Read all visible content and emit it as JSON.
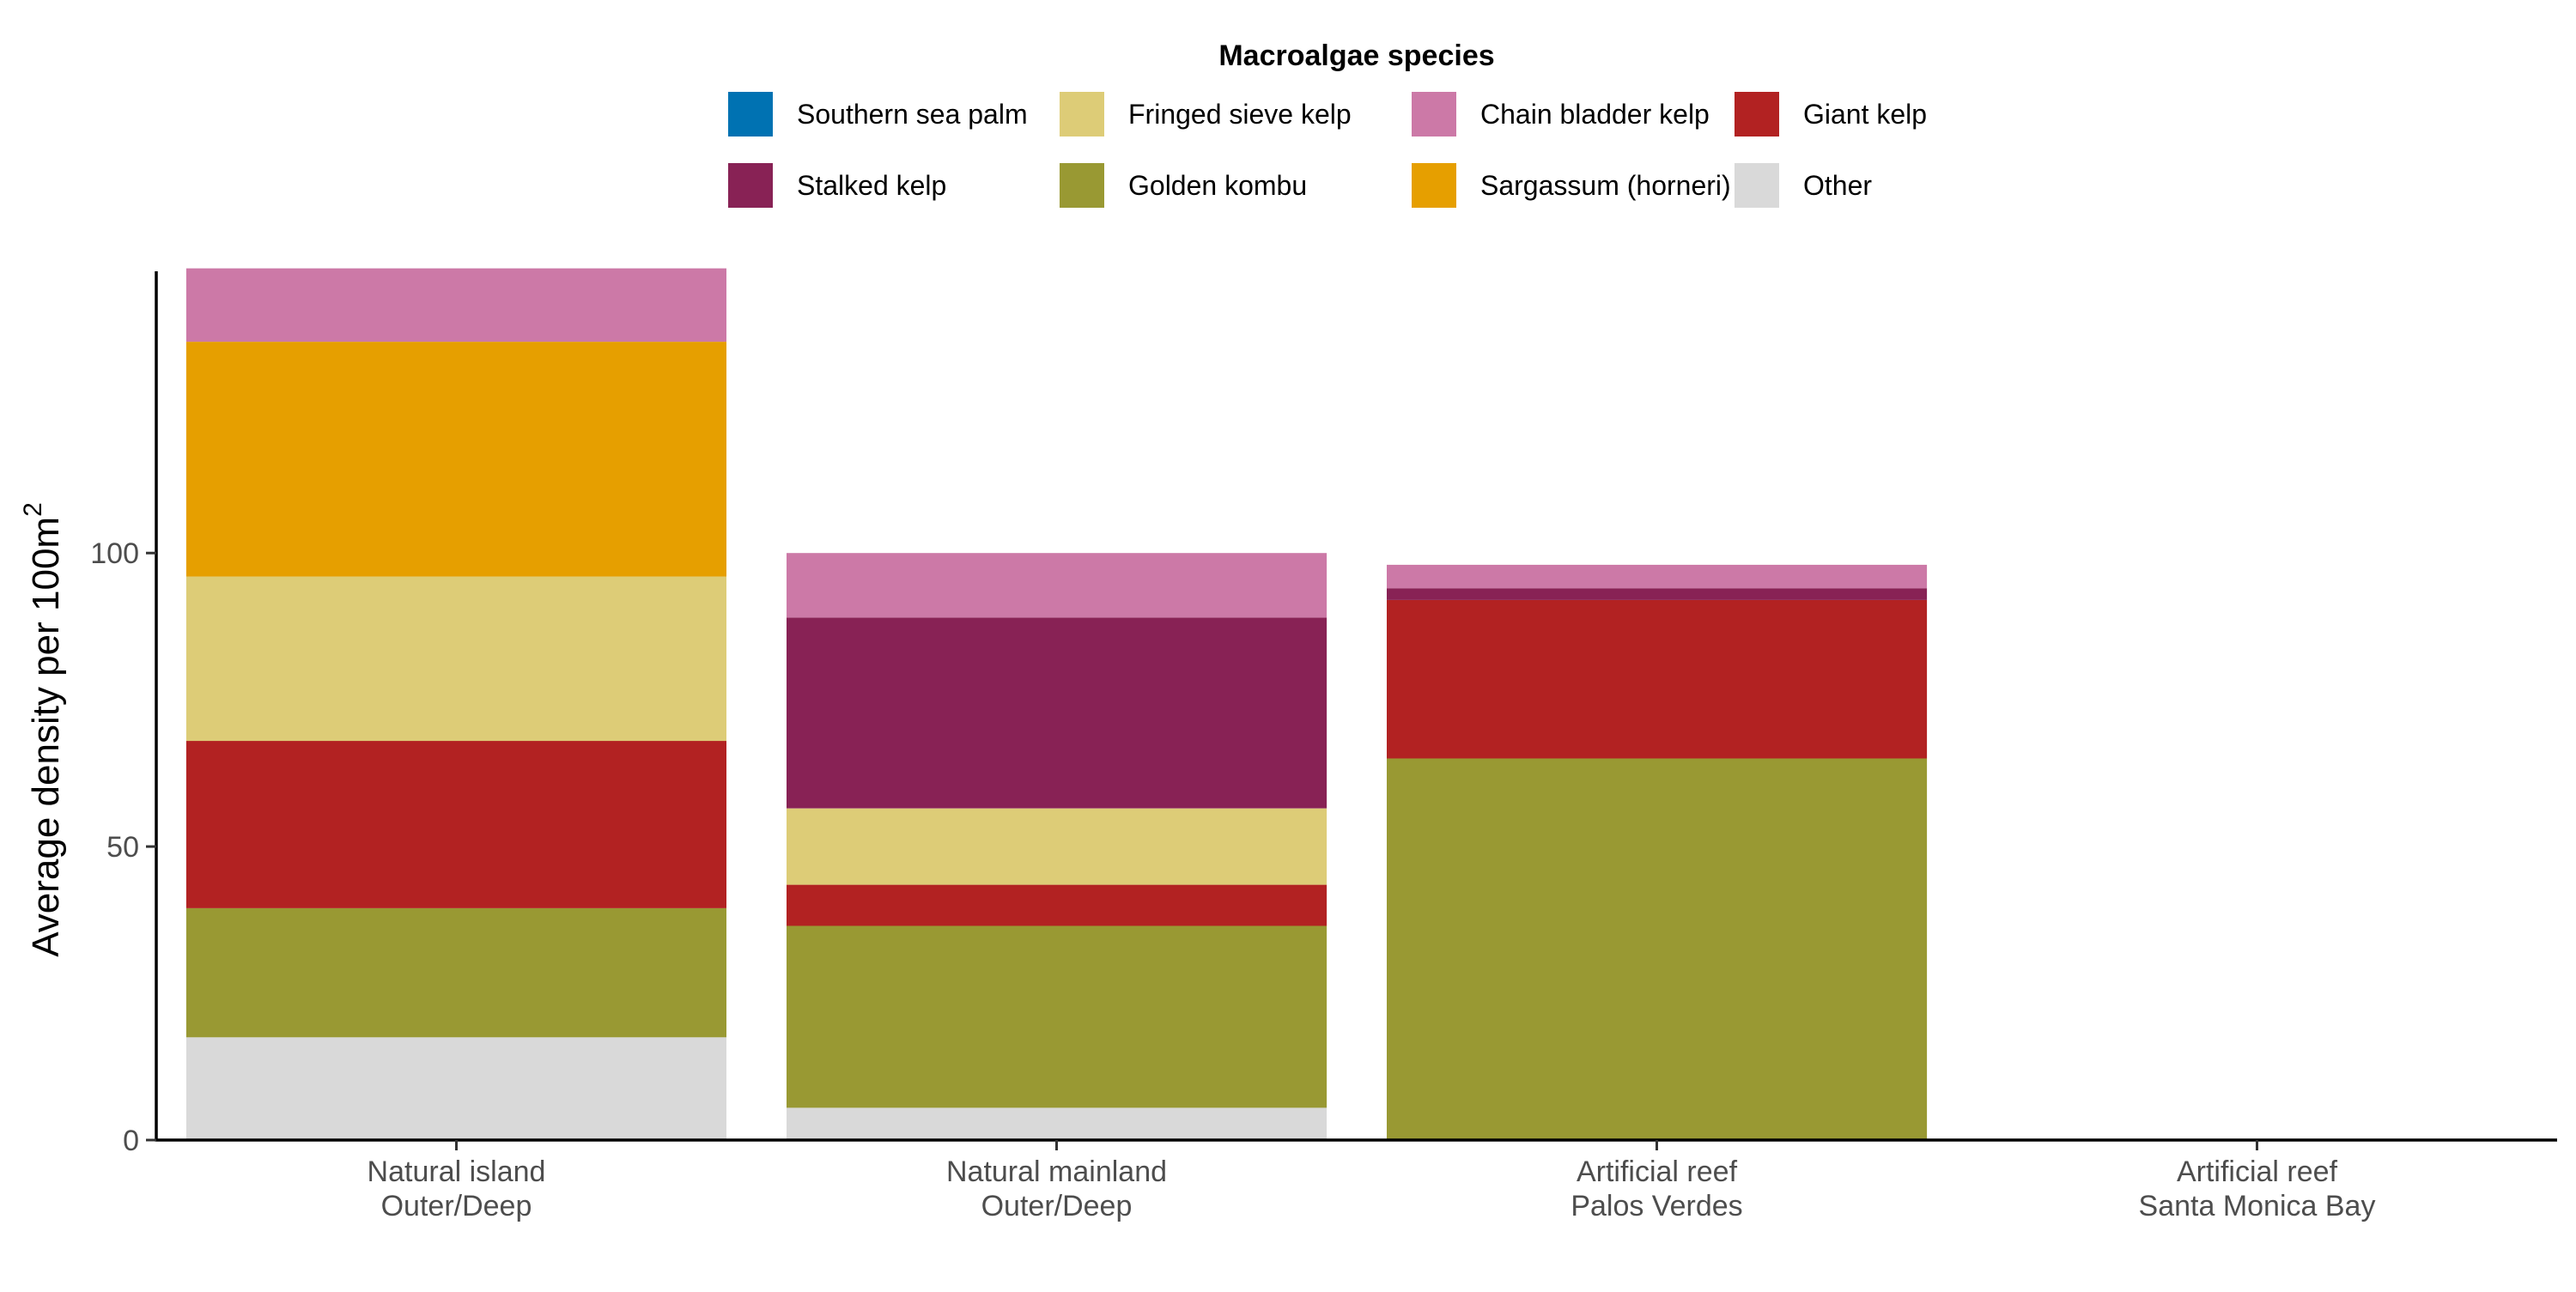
{
  "chart_data": {
    "type": "bar",
    "stacked": true,
    "title": "",
    "xlabel": "",
    "ylabel": "Average density per 100m",
    "ylabel_superscript": "2",
    "ylim": [
      0,
      148
    ],
    "yticks": [
      0,
      50,
      100
    ],
    "grid": false,
    "legend": {
      "title": "Macroalgae species",
      "position": "top"
    },
    "categories": [
      {
        "line1": "Natural island",
        "line2": "Outer/Deep"
      },
      {
        "line1": "Natural mainland",
        "line2": "Outer/Deep"
      },
      {
        "line1": "Artificial reef",
        "line2": "Palos Verdes"
      },
      {
        "line1": "Artificial reef",
        "line2": "Santa Monica Bay"
      }
    ],
    "series": [
      {
        "name": "Southern sea palm",
        "color": "#0072B2",
        "values": [
          0,
          0,
          0,
          0
        ]
      },
      {
        "name": "Stalked kelp",
        "color": "#882255",
        "values": [
          0,
          32.5,
          2,
          0
        ]
      },
      {
        "name": "Fringed sieve kelp",
        "color": "#DDCC77",
        "values": [
          28,
          13,
          0,
          0
        ]
      },
      {
        "name": "Golden kombu",
        "color": "#999933",
        "values": [
          22,
          31,
          65,
          0
        ]
      },
      {
        "name": "Chain bladder kelp",
        "color": "#CC79A7",
        "values": [
          12.5,
          11,
          4,
          0
        ]
      },
      {
        "name": "Sargassum (horneri)",
        "color": "#E69F00",
        "values": [
          40,
          0,
          0,
          0
        ]
      },
      {
        "name": "Giant kelp",
        "color": "#B22222",
        "values": [
          28.5,
          7,
          27,
          0
        ]
      },
      {
        "name": "Other",
        "color": "#D9D9D9",
        "values": [
          17.5,
          5.5,
          0,
          0
        ]
      }
    ],
    "stack_order_bottom_to_top": [
      "Other",
      "Golden kombu",
      "Giant kelp",
      "Fringed sieve kelp",
      "Sargassum (horneri)",
      "Stalked kelp",
      "Southern sea palm",
      "Chain bladder kelp"
    ]
  }
}
